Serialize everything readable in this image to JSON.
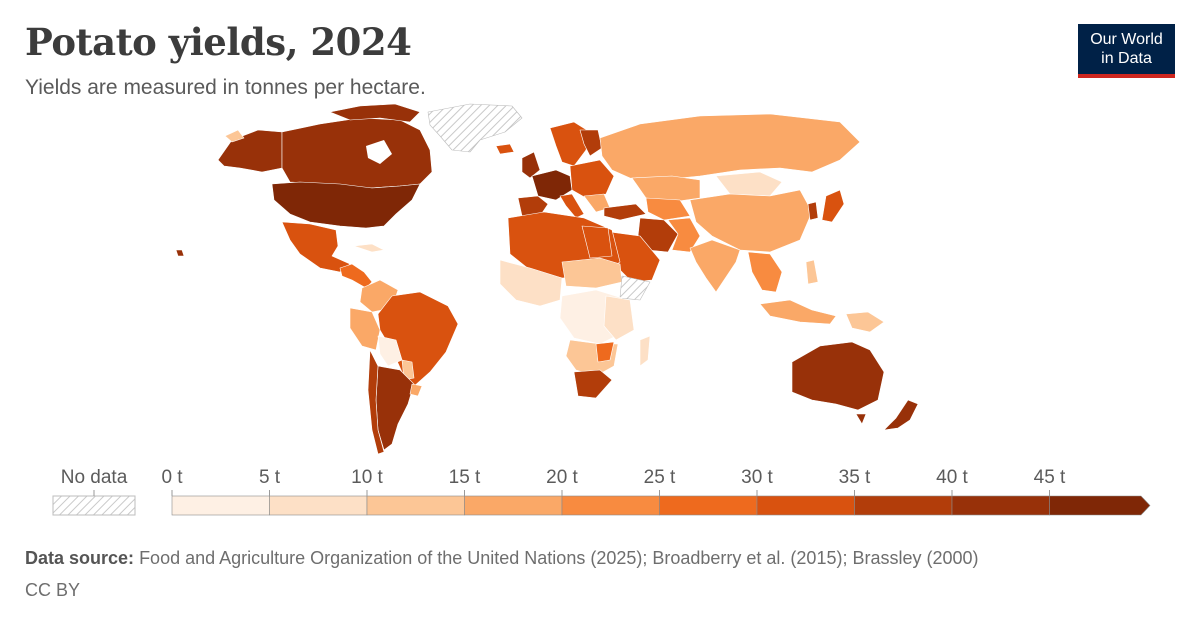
{
  "header": {
    "title": "Potato yields, 2024",
    "subtitle": "Yields are measured in tonnes per hectare."
  },
  "logo": {
    "line1": "Our World",
    "line2": "in Data"
  },
  "legend": {
    "no_data_label": "No data",
    "ticks": [
      "0 t",
      "5 t",
      "10 t",
      "15 t",
      "20 t",
      "25 t",
      "30 t",
      "35 t",
      "40 t",
      "45 t"
    ],
    "colors": [
      "#fef0e4",
      "#fde0c6",
      "#fcc696",
      "#faa867",
      "#f88b40",
      "#ee6a1e",
      "#d9520f",
      "#b23d0a",
      "#983109",
      "#7f2706"
    ]
  },
  "map_colors": {
    "no_data": "#e9e9e9",
    "very_low": "#fef0e4",
    "low": "#fde0c6",
    "low_mid": "#fcc696",
    "mid": "#faa867",
    "mid_high": "#f88b40",
    "high": "#ee6a1e",
    "higher": "#d9520f",
    "very_high": "#b23d0a",
    "top": "#983109",
    "max": "#7f2706"
  },
  "footer": {
    "source_label": "Data source:",
    "source_text": "Food and Agriculture Organization of the United Nations (2025); Broadberry et al. (2015); Brassley (2000)",
    "license": "CC BY"
  }
}
